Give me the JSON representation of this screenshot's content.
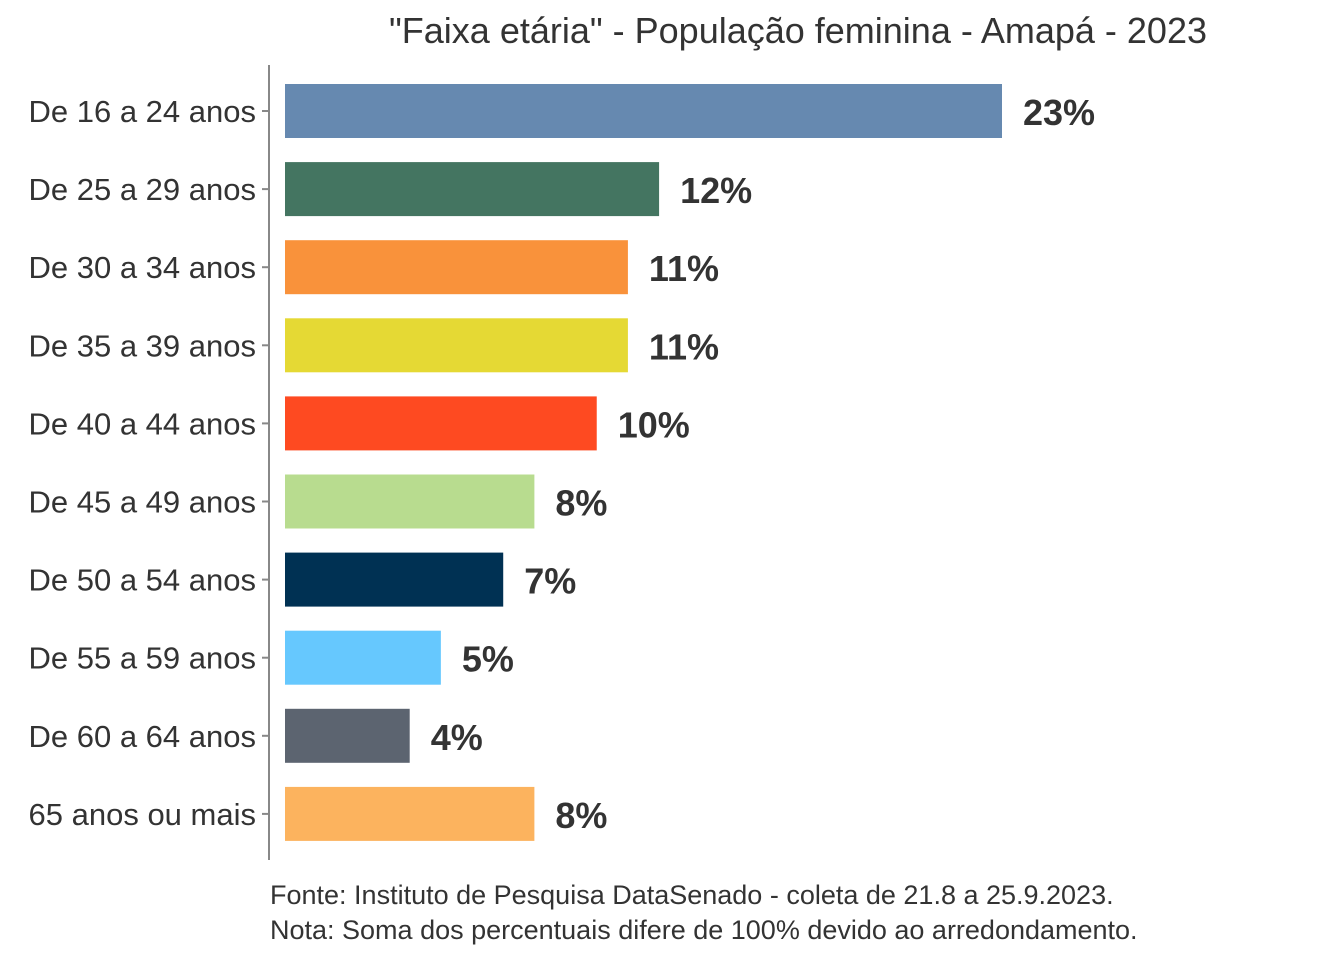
{
  "chart_data": {
    "type": "bar",
    "orientation": "horizontal",
    "title": "\"Faixa etária\" - População feminina - Amapá - 2023",
    "xlabel": "",
    "ylabel": "",
    "xlim": [
      0,
      23
    ],
    "grid": false,
    "categories": [
      "De 16 a 24 anos",
      "De 25 a 29 anos",
      "De 30 a 34 anos",
      "De 35 a 39 anos",
      "De 40 a 44 anos",
      "De 45 a 49 anos",
      "De 50 a 54 anos",
      "De 55 a 59 anos",
      "De 60 a 64 anos",
      "65 anos ou mais"
    ],
    "values": [
      23,
      12,
      11,
      11,
      10,
      8,
      7,
      5,
      4,
      8
    ],
    "labels": [
      "23%",
      "12%",
      "11%",
      "11%",
      "10%",
      "8%",
      "7%",
      "5%",
      "4%",
      "8%"
    ],
    "colors": [
      "#6689B0",
      "#447561",
      "#F9923B",
      "#E5D934",
      "#FE4A21",
      "#B8DC8F",
      "#003153",
      "#66C8FE",
      "#5C6470",
      "#FCB35E"
    ],
    "notes": [
      "Fonte: Instituto de Pesquisa DataSenado - coleta de 21.8 a 25.9.2023.",
      "Nota: Soma dos percentuais difere de 100% devido ao arredondamento."
    ]
  }
}
